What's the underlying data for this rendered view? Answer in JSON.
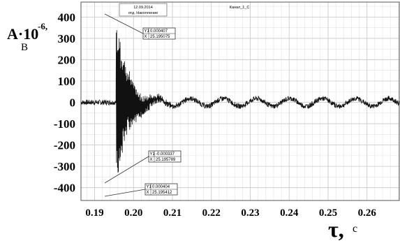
{
  "chart_data": {
    "type": "line",
    "ylabel": "A·10",
    "ylabel_exponent": "-6",
    "ylabel_sep": ",",
    "ylabel_unit": "В",
    "xlabel": "τ,",
    "xlabel_unit": "с",
    "xlim": [
      0.1865,
      0.2683
    ],
    "ylim": [
      -460,
      470
    ],
    "y_ticks": [
      400,
      300,
      200,
      100,
      0,
      -100,
      -200,
      -300,
      -400
    ],
    "y_tick_labels": [
      "400",
      "300",
      "200",
      "100",
      "0",
      "-100",
      "-200",
      "-300",
      "-400"
    ],
    "x_ticks": [
      0.19,
      0.2,
      0.21,
      0.22,
      0.23,
      0.24,
      0.25,
      0.26
    ],
    "x_tick_labels": [
      "0.19",
      "0.20",
      "0.21",
      "0.22",
      "0.23",
      "0.24",
      "0.25",
      "0.26"
    ],
    "grid": true,
    "signal": {
      "baseline_noise": 12,
      "burst_start": 0.1955,
      "burst_max": 390,
      "burst_min": -405,
      "decay_end": 0.205,
      "osc_amplitude": 18,
      "osc_period": 0.0085
    },
    "header": {
      "date": "12.09.2014",
      "subtitle": "отд. Накопление",
      "channel": "Канал_1_С"
    },
    "annotations": [
      {
        "rows": [
          [
            "Y1",
            "0.000407"
          ],
          [
            "X",
            "25.195075"
          ]
        ]
      },
      {
        "rows": [
          [
            "Y1",
            "-0.000337"
          ],
          [
            "X",
            "25.195789"
          ]
        ]
      },
      {
        "rows": [
          [
            "Y1",
            "0.000404"
          ],
          [
            "X",
            "25.195412"
          ]
        ]
      }
    ]
  }
}
